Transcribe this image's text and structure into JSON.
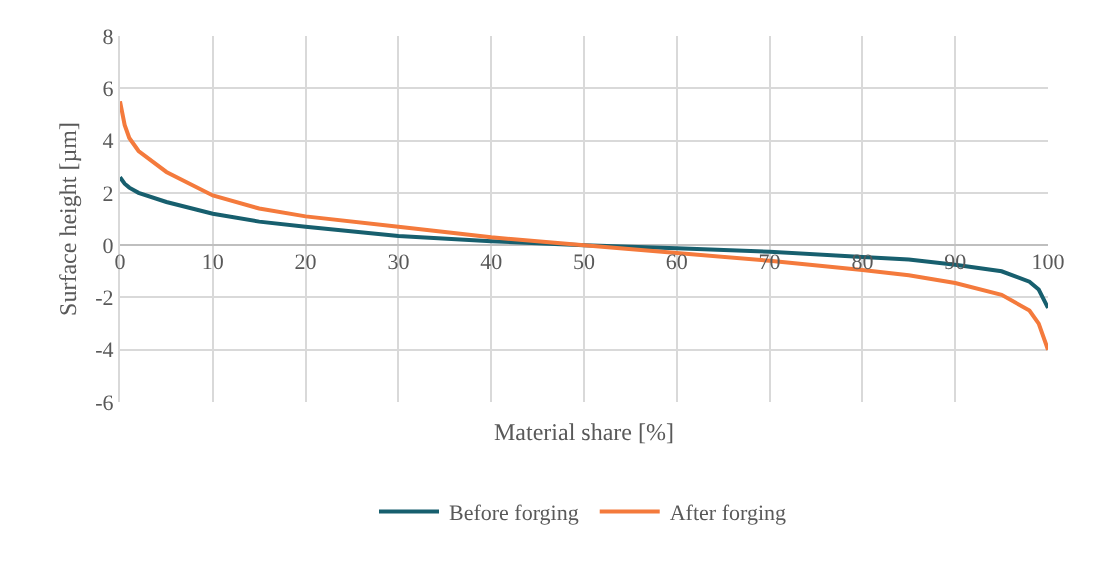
{
  "chart_data": {
    "type": "line",
    "xlabel": "Material share [%]",
    "ylabel": "Surface height [µm]",
    "xlim": [
      0,
      100
    ],
    "xticks": [
      0,
      10,
      20,
      30,
      40,
      50,
      60,
      70,
      80,
      90,
      100
    ],
    "ylim": [
      -6,
      8
    ],
    "yticks": [
      -6,
      -4,
      -2,
      0,
      2,
      4,
      6,
      8
    ],
    "grid": true,
    "legend": "bottom",
    "marker": "none",
    "line_style": "solid",
    "series": [
      {
        "name": "Before forging",
        "color": "#175f6e",
        "x": [
          0,
          0.5,
          1,
          2,
          5,
          10,
          15,
          20,
          30,
          40,
          50,
          60,
          70,
          80,
          85,
          90,
          95,
          98,
          99,
          100
        ],
        "values": [
          2.6,
          2.35,
          2.2,
          2.0,
          1.65,
          1.2,
          0.9,
          0.7,
          0.35,
          0.15,
          0,
          -0.12,
          -0.25,
          -0.45,
          -0.55,
          -0.75,
          -1.0,
          -1.4,
          -1.7,
          -2.4
        ]
      },
      {
        "name": "After forging",
        "color": "#f47a3c",
        "x": [
          0,
          0.5,
          1,
          2,
          5,
          10,
          15,
          20,
          30,
          40,
          50,
          60,
          70,
          80,
          85,
          90,
          95,
          98,
          99,
          100
        ],
        "values": [
          5.5,
          4.6,
          4.1,
          3.6,
          2.8,
          1.9,
          1.4,
          1.1,
          0.7,
          0.3,
          0,
          -0.3,
          -0.6,
          -0.95,
          -1.15,
          -1.45,
          -1.9,
          -2.5,
          -3.0,
          -4.0
        ]
      }
    ]
  }
}
